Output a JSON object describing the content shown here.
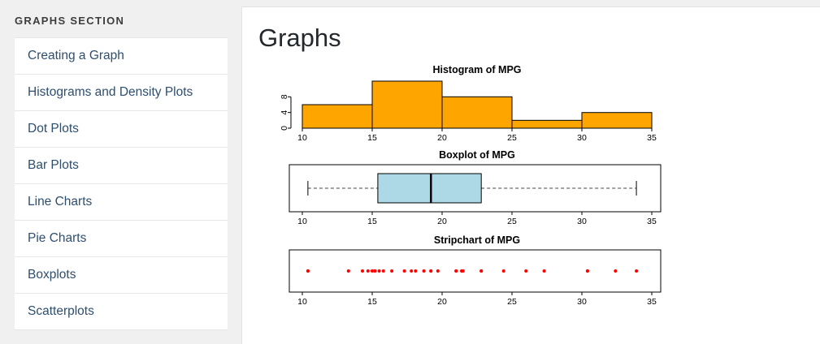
{
  "sidebar": {
    "section_title": "GRAPHS SECTION",
    "items": [
      {
        "label": "Creating a Graph"
      },
      {
        "label": "Histograms and Density Plots"
      },
      {
        "label": "Dot Plots"
      },
      {
        "label": "Bar Plots"
      },
      {
        "label": "Line Charts"
      },
      {
        "label": "Pie Charts"
      },
      {
        "label": "Boxplots"
      },
      {
        "label": "Scatterplots"
      }
    ]
  },
  "main": {
    "title": "Graphs"
  },
  "chart_data": [
    {
      "type": "bar",
      "subtype": "histogram",
      "title": "Histogram of MPG",
      "xlabel": "",
      "ylabel": "",
      "bin_edges": [
        10,
        15,
        20,
        25,
        30,
        35
      ],
      "counts": [
        6,
        12,
        8,
        2,
        4
      ],
      "x_ticks": [
        10,
        15,
        20,
        25,
        30,
        35
      ],
      "y_ticks": [
        0,
        4,
        8
      ],
      "ylim": [
        0,
        12
      ],
      "bar_color": "#FFA500",
      "bar_border": "#000000",
      "grid": false,
      "legend": false
    },
    {
      "type": "boxplot",
      "orientation": "horizontal",
      "title": "Boxplot of MPG",
      "min": 10.4,
      "q1": 15.4,
      "median": 19.2,
      "q3": 22.8,
      "max": 33.9,
      "x_ticks": [
        10,
        15,
        20,
        25,
        30,
        35
      ],
      "xlim": [
        9,
        36
      ],
      "box_color": "#ADD8E6",
      "whisker_style": "dashed",
      "grid": false,
      "legend": false
    },
    {
      "type": "scatter",
      "subtype": "stripchart",
      "title": "Stripchart of MPG",
      "values": [
        21,
        21,
        22.8,
        21.4,
        18.7,
        18.1,
        14.3,
        24.4,
        22.8,
        19.2,
        17.8,
        16.4,
        17.3,
        15.2,
        10.4,
        10.4,
        14.7,
        32.4,
        30.4,
        33.9,
        21.5,
        15.5,
        15.2,
        13.3,
        19.2,
        27.3,
        26,
        30.4,
        15.8,
        19.7,
        15,
        21.4
      ],
      "x_ticks": [
        10,
        15,
        20,
        25,
        30,
        35
      ],
      "xlim": [
        9,
        36
      ],
      "point_color": "#FF0000",
      "grid": false,
      "legend": false
    }
  ]
}
